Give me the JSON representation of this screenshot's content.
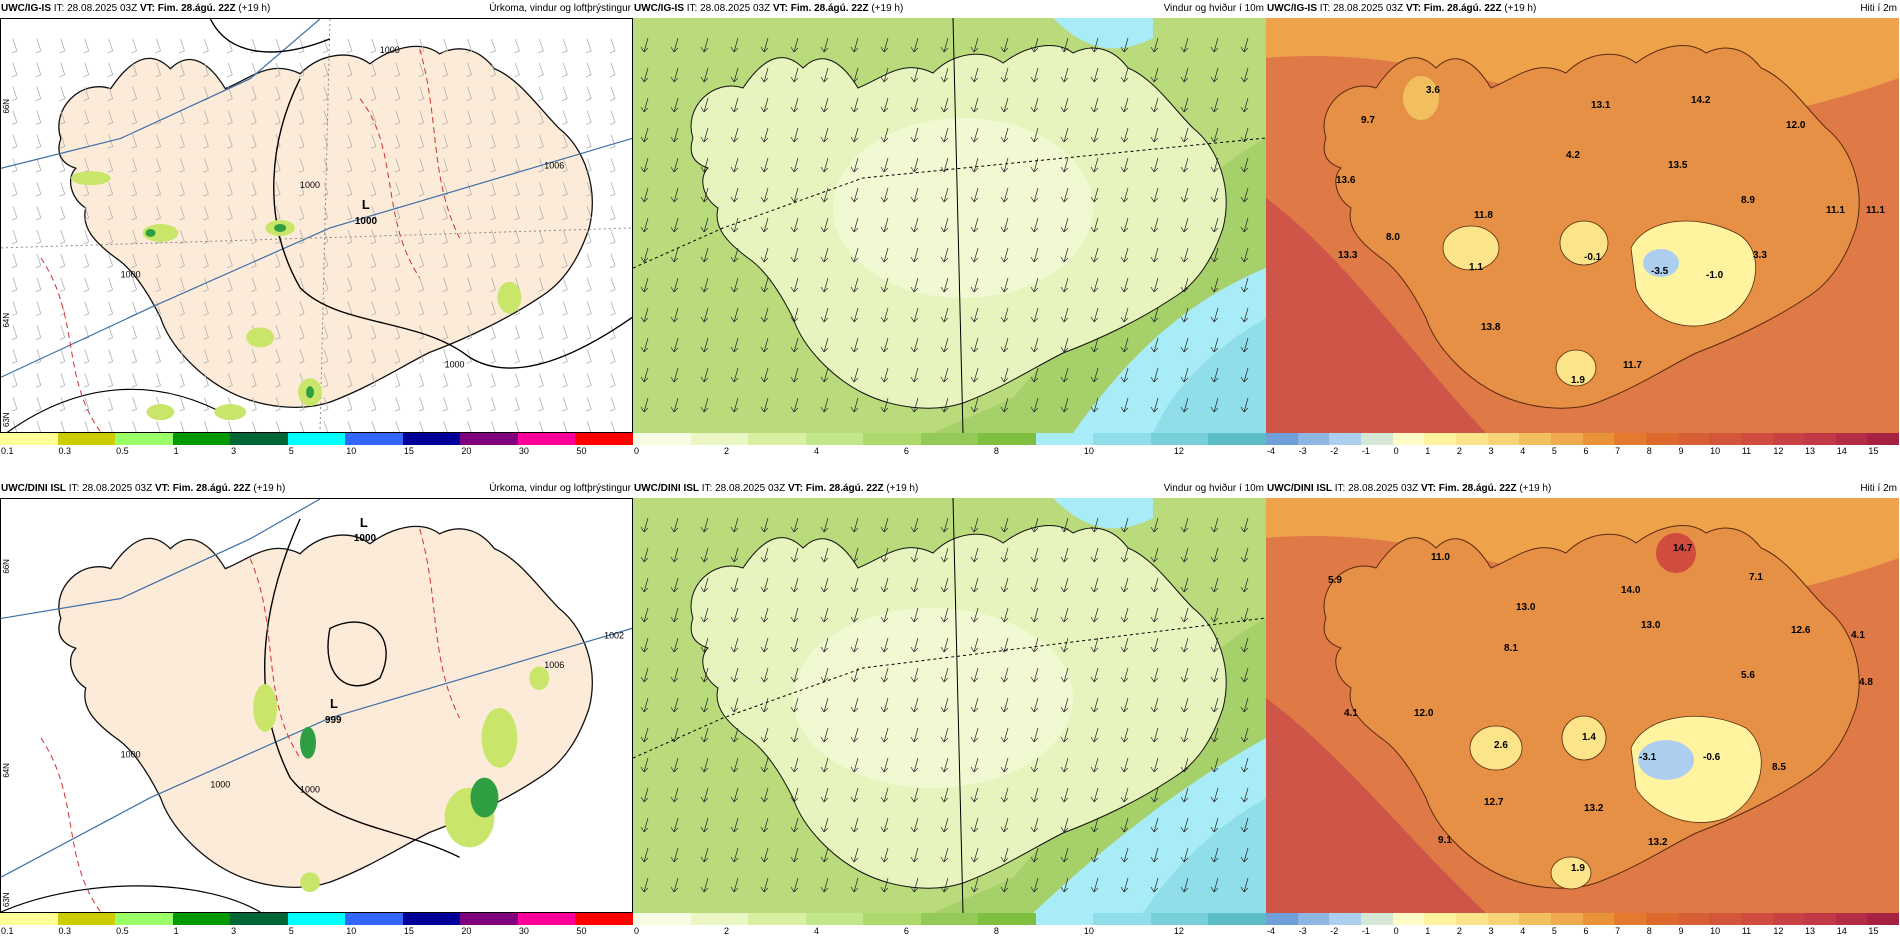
{
  "rows": [
    {
      "model": "UWC/IG-IS",
      "it": "IT: 28.08.2025 03Z",
      "vt_label": "VT:",
      "vt": "Fim. 28.ágú. 22Z",
      "lead": "(+19 h)",
      "panels": {
        "precip": {
          "title": "Úrkoma, vindur og loftþrýstingur",
          "isobars": [
            "1000",
            "1000",
            "1000",
            "1000",
            "1006"
          ],
          "low_label": "L",
          "low_value": "1000",
          "lat_labels": [
            "66N",
            "64N",
            "63N"
          ]
        },
        "wind": {
          "title": "Vindur og hviður í 10m"
        },
        "temp": {
          "title": "Hiti í 2m",
          "points": [
            "3.6",
            "9.7",
            "13.1",
            "14.2",
            "12.0",
            "11.1",
            "4.2",
            "13.5",
            "13.6",
            "11.8",
            "8.9",
            "11.1",
            "8.0",
            "13.3",
            "-0.1",
            "1.1",
            "-3.5",
            "-1.0",
            "3.3",
            "13.8",
            "11.7",
            "1.9"
          ]
        }
      }
    },
    {
      "model": "UWC/DINI ISL",
      "it": "IT: 28.08.2025 03Z",
      "vt_label": "VT:",
      "vt": "Fim. 28.ágú. 22Z",
      "lead": "(+19 h)",
      "panels": {
        "precip": {
          "title": "Úrkoma, vindur og loftþrýstingur",
          "isobars": [
            "1000",
            "1000",
            "1000",
            "1002",
            "1006"
          ],
          "low_label": "L",
          "low_value": "999",
          "top_low_label": "L",
          "top_low_value": "1000",
          "lat_labels": [
            "66N",
            "64N",
            "63N"
          ]
        },
        "wind": {
          "title": "Vindur og hviður í 10m"
        },
        "temp": {
          "title": "Hiti í 2m",
          "points": [
            "11.0",
            "14.7",
            "5.9",
            "7.1",
            "14.0",
            "4.1",
            "13.0",
            "12.6",
            "13.0",
            "8.1",
            "5.6",
            "4.8",
            "4.1",
            "12.0",
            "2.6",
            "1.4",
            "-3.1",
            "-0.6",
            "8.5",
            "12.7",
            "13.2",
            "13.2",
            "9.1",
            "1.9"
          ]
        }
      }
    }
  ],
  "legends": {
    "precip": {
      "ticks": [
        "0.1",
        "0.3",
        "0.5",
        "1",
        "3",
        "5",
        "10",
        "15",
        "20",
        "30",
        "50"
      ],
      "colors": [
        "#ffff99",
        "#cccc00",
        "#99ff66",
        "#009900",
        "#006633",
        "#00ffff",
        "#3366ff",
        "#000099",
        "#800080",
        "#ff0099",
        "#ff0000"
      ]
    },
    "wind": {
      "ticks": [
        "0",
        "2",
        "4",
        "6",
        "8",
        "10",
        "12"
      ],
      "colors": [
        "#f7fce3",
        "#ebf7c3",
        "#d9f0a3",
        "#c2e68a",
        "#add96e",
        "#93c957",
        "#7fbf3f",
        "#a8ecf7",
        "#8fdeea",
        "#76cfd9",
        "#5cbcc6"
      ]
    },
    "temp": {
      "ticks": [
        "-4",
        "-3",
        "-2",
        "-1",
        "0",
        "1",
        "2",
        "3",
        "4",
        "5",
        "6",
        "7",
        "8",
        "9",
        "10",
        "11",
        "12",
        "13",
        "14",
        "15"
      ],
      "colors": [
        "#6e9fd8",
        "#8db6e2",
        "#accff0",
        "#d4e6d4",
        "#fffcc8",
        "#fff3a0",
        "#fbe48a",
        "#f7d37a",
        "#f2bf5f",
        "#eeaa4c",
        "#e89338",
        "#e37a2e",
        "#dc6a2c",
        "#d66033",
        "#d3563a",
        "#cf4c3f",
        "#c94243",
        "#c13846",
        "#b42d46",
        "#a62243"
      ]
    }
  }
}
